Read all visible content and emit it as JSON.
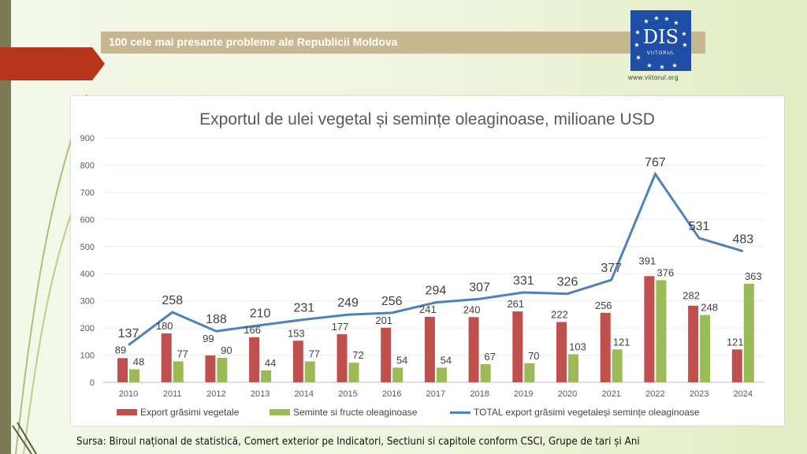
{
  "header": {
    "title": "100 cele mai presante probleme ale Republicii Moldova"
  },
  "logo": {
    "text": "DIS",
    "subtitle": "VIITORUL",
    "url": "www.viitorul.org"
  },
  "source": "Sursa: Biroul național de statistică, Comert exterior pe Indicatori, Sectiuni si capitole conform CSCI, Grupe de tari și Ani",
  "colors": {
    "red": "#c0504d",
    "green": "#9bbb59",
    "blue": "#4f81bd"
  },
  "chart_data": {
    "type": "bar",
    "title": "Exportul de ulei vegetal și semințe oleaginoase, milioane USD",
    "categories": [
      "2010",
      "2011",
      "2012",
      "2013",
      "2014",
      "2015",
      "2016",
      "2017",
      "2018",
      "2019",
      "2020",
      "2021",
      "2022",
      "2023",
      "2024"
    ],
    "ylim": [
      0,
      900
    ],
    "yticks": [
      "0",
      "100",
      "200",
      "300",
      "400",
      "500",
      "600",
      "700",
      "800",
      "900"
    ],
    "legend_position": "bottom",
    "series": [
      {
        "name": "Export grăsimi vegetale",
        "type": "bar",
        "color": "#c0504d",
        "values": [
          89,
          180,
          99,
          166,
          153,
          177,
          201,
          241,
          240,
          261,
          222,
          256,
          391,
          282,
          121
        ]
      },
      {
        "name": "Seminte si fructe oleaginoase",
        "type": "bar",
        "color": "#9bbb59",
        "values": [
          48,
          77,
          90,
          44,
          77,
          72,
          54,
          54,
          67,
          70,
          103,
          121,
          376,
          248,
          363
        ]
      },
      {
        "name": "TOTAL export grăsimi vegetaleși semințe oleaginoase",
        "type": "line",
        "color": "#4f81bd",
        "values": [
          137,
          258,
          188,
          210,
          231,
          249,
          256,
          294,
          307,
          331,
          326,
          377,
          767,
          531,
          483
        ]
      }
    ]
  }
}
